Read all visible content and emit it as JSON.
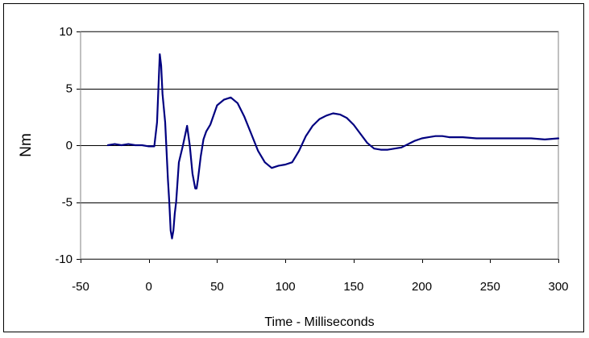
{
  "chart_data": {
    "type": "line",
    "title": "",
    "xlabel": "Time - Milliseconds",
    "ylabel": "Nm",
    "xlim": [
      -50,
      300
    ],
    "ylim": [
      -10,
      10
    ],
    "x_ticks": [
      -50,
      0,
      50,
      100,
      150,
      200,
      250,
      300
    ],
    "y_ticks": [
      -10,
      -5,
      0,
      5,
      10
    ],
    "x_tick_labels": [
      "-50",
      "0",
      "50",
      "100",
      "150",
      "200",
      "250",
      "300"
    ],
    "y_tick_labels": [
      "-10",
      "-5",
      "0",
      "5",
      "10"
    ],
    "grid": "horizontal",
    "legend": "none",
    "colors": {
      "series": "#000080",
      "grid": "#000000",
      "plot_border": "#808080"
    },
    "series": [
      {
        "x": [
          -30,
          -25,
          -20,
          -15,
          -10,
          -5,
          0,
          4,
          6,
          8,
          9,
          10,
          12,
          14,
          15,
          16,
          17,
          18,
          19,
          20,
          22,
          25,
          28,
          30,
          32,
          34,
          35,
          36,
          38,
          40,
          42,
          45,
          50,
          55,
          60,
          65,
          70,
          75,
          80,
          85,
          90,
          95,
          100,
          105,
          110,
          115,
          120,
          125,
          130,
          135,
          140,
          145,
          150,
          155,
          160,
          165,
          170,
          175,
          180,
          185,
          190,
          195,
          200,
          205,
          210,
          215,
          220,
          230,
          240,
          250,
          260,
          270,
          280,
          290,
          300
        ],
        "y": [
          0.0,
          0.1,
          0.0,
          0.1,
          0.0,
          0.0,
          -0.1,
          -0.1,
          2.0,
          8.0,
          7.0,
          4.5,
          2.0,
          -3.0,
          -5.0,
          -7.5,
          -8.2,
          -7.5,
          -6.0,
          -5.0,
          -1.5,
          0.0,
          1.7,
          0.0,
          -2.5,
          -3.8,
          -3.8,
          -3.0,
          -1.0,
          0.5,
          1.2,
          1.8,
          3.5,
          4.0,
          4.2,
          3.7,
          2.5,
          1.0,
          -0.5,
          -1.5,
          -2.0,
          -1.8,
          -1.7,
          -1.5,
          -0.5,
          0.8,
          1.7,
          2.3,
          2.6,
          2.8,
          2.7,
          2.4,
          1.8,
          1.0,
          0.2,
          -0.3,
          -0.4,
          -0.4,
          -0.3,
          -0.2,
          0.1,
          0.4,
          0.6,
          0.7,
          0.8,
          0.8,
          0.7,
          0.7,
          0.6,
          0.6,
          0.6,
          0.6,
          0.6,
          0.5,
          0.6
        ]
      }
    ]
  }
}
